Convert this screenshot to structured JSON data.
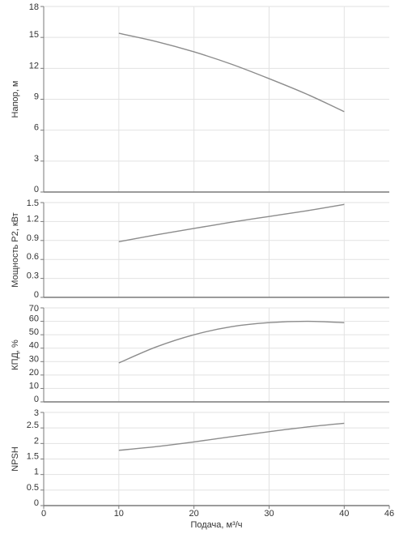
{
  "chart_data": [
    {
      "type": "line",
      "ylabel": "Напор, м",
      "xlim": [
        0,
        46
      ],
      "ylim": [
        0,
        18
      ],
      "yticks": [
        "0",
        "3",
        "6",
        "9",
        "12",
        "15",
        "18"
      ],
      "grid": true,
      "series": [
        {
          "x": [
            10,
            15,
            20,
            25,
            30,
            35,
            40
          ],
          "y": [
            15.4,
            14.6,
            13.6,
            12.4,
            11.0,
            9.5,
            7.8
          ]
        }
      ]
    },
    {
      "type": "line",
      "ylabel": "Мощность P2, кВт",
      "xlim": [
        0,
        46
      ],
      "ylim": [
        0,
        1.5
      ],
      "yticks": [
        "0",
        "0.3",
        "0.6",
        "0.9",
        "1.2",
        "1.5"
      ],
      "grid": true,
      "series": [
        {
          "x": [
            10,
            15,
            20,
            25,
            30,
            35,
            40
          ],
          "y": [
            0.88,
            0.99,
            1.09,
            1.19,
            1.28,
            1.37,
            1.47
          ]
        }
      ]
    },
    {
      "type": "line",
      "ylabel": "КПД, %",
      "xlim": [
        0,
        46
      ],
      "ylim": [
        0,
        70
      ],
      "yticks": [
        "0",
        "10",
        "20",
        "30",
        "40",
        "50",
        "60",
        "70"
      ],
      "grid": true,
      "series": [
        {
          "x": [
            10,
            15,
            20,
            25,
            30,
            35,
            40
          ],
          "y": [
            29,
            41,
            50,
            56,
            59,
            60,
            59
          ]
        }
      ]
    },
    {
      "type": "line",
      "ylabel": "NPSH",
      "xlabel": "Подача, м³/ч",
      "xlim": [
        0,
        46
      ],
      "ylim": [
        0,
        3
      ],
      "xticks": [
        "0",
        "10",
        "20",
        "30",
        "40",
        "46"
      ],
      "yticks": [
        "0",
        "0.5",
        "1",
        "1.5",
        "2",
        "2.5",
        "3"
      ],
      "grid": true,
      "series": [
        {
          "x": [
            10,
            15,
            20,
            25,
            30,
            35,
            40
          ],
          "y": [
            1.78,
            1.9,
            2.05,
            2.22,
            2.38,
            2.53,
            2.65
          ]
        }
      ]
    }
  ],
  "colors": {
    "line": "#8c8c8c",
    "grid": "#e2e2e2",
    "axis": "#7a7a7a",
    "text": "#333333"
  }
}
